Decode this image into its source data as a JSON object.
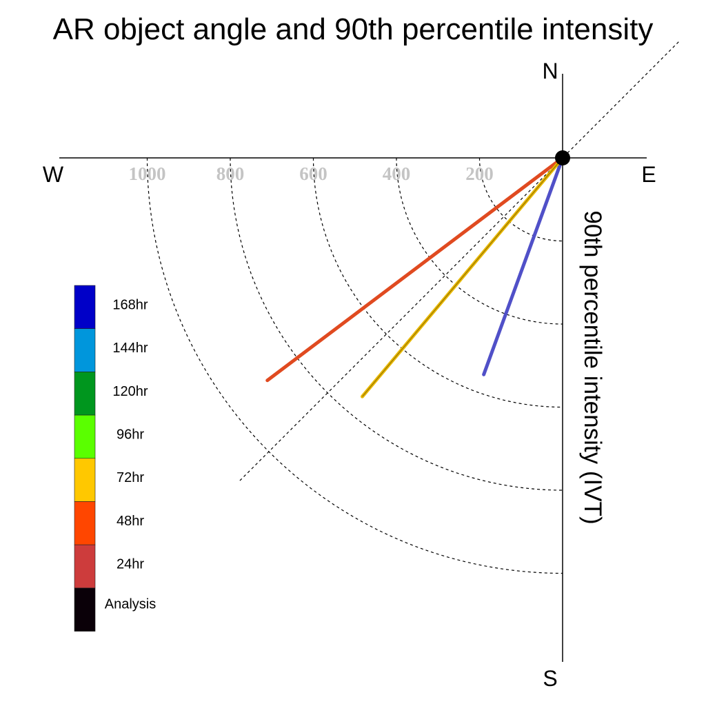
{
  "chart_data": {
    "type": "polar-line",
    "title": "AR object angle and 90th percentile intensity",
    "compass": {
      "north": "N",
      "south": "S",
      "east": "E",
      "west": "W"
    },
    "radial_axis_label": "90th percentile intensity (IVT)",
    "radial_ticks": [
      200,
      400,
      600,
      800,
      1000
    ],
    "rlim": [
      0,
      1200
    ],
    "direction_guide_angle_deg": 45,
    "grid": true,
    "legend_placement": "left",
    "legend": [
      {
        "label": "168hr",
        "color": "#0000c8"
      },
      {
        "label": "144hr",
        "color": "#0096dc"
      },
      {
        "label": "120hr",
        "color": "#00961e"
      },
      {
        "label": "96hr",
        "color": "#5aff00"
      },
      {
        "label": "72hr",
        "color": "#ffc800"
      },
      {
        "label": "48hr",
        "color": "#ff4600"
      },
      {
        "label": "24hr",
        "color": "#cd3c3c"
      },
      {
        "label": "Analysis",
        "color": "#0a0008"
      }
    ],
    "series": [
      {
        "name": "168hr",
        "angle_deg": 200,
        "intensity": 555,
        "color": "#5050c8"
      },
      {
        "name": "48hr",
        "angle_deg": 233,
        "intensity": 890,
        "color": "#e04a20"
      },
      {
        "name": "72hr",
        "angle_deg": 220,
        "intensity": 750,
        "color": "#e8b800"
      }
    ]
  }
}
